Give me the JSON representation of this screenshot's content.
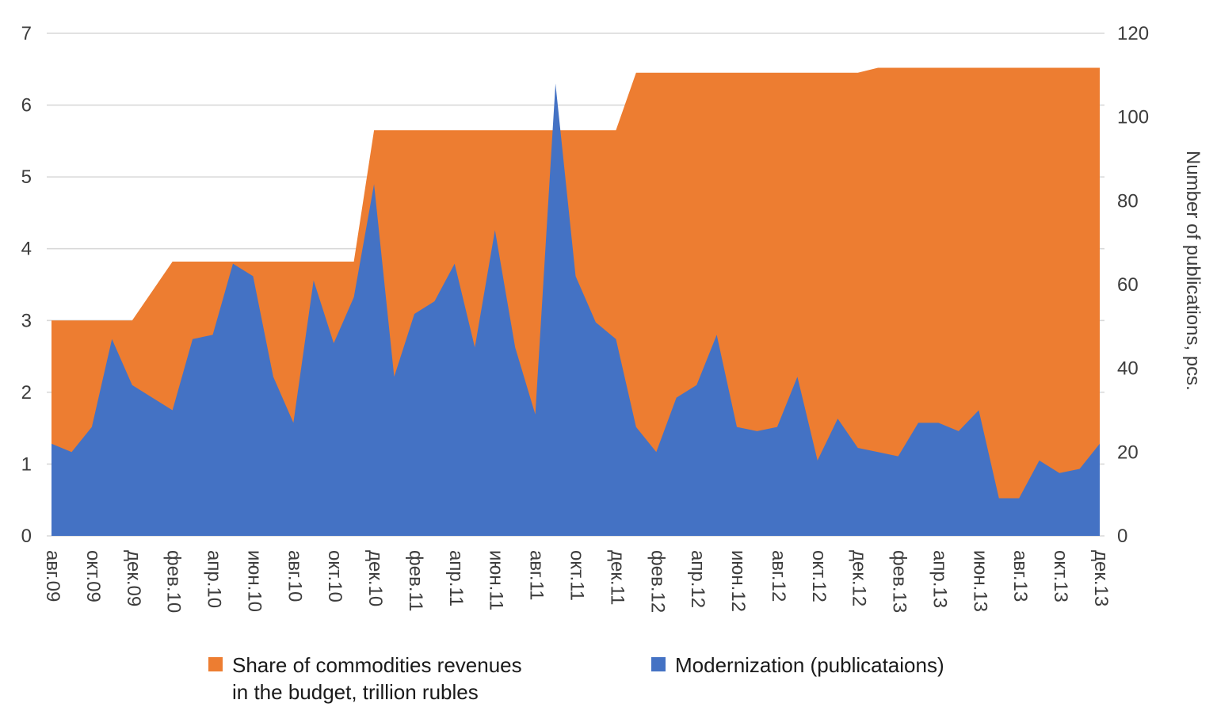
{
  "chart_data": {
    "type": "area",
    "title": "",
    "grid": true,
    "legend_position": "bottom",
    "months": [
      "авг.09",
      "сен.09",
      "окт.09",
      "ноя.09",
      "дек.09",
      "янв.10",
      "фев.10",
      "мар.10",
      "апр.10",
      "май.10",
      "июн.10",
      "июл.10",
      "авг.10",
      "сен.10",
      "окт.10",
      "ноя.10",
      "дек.10",
      "янв.11",
      "фев.11",
      "мар.11",
      "апр.11",
      "май.11",
      "июн.11",
      "июл.11",
      "авг.11",
      "сен.11",
      "окт.11",
      "ноя.11",
      "дек.11",
      "янв.12",
      "фев.12",
      "мар.12",
      "апр.12",
      "май.12",
      "июн.12",
      "июл.12",
      "авг.12",
      "сен.12",
      "окт.12",
      "ноя.12",
      "дек.12",
      "янв.13",
      "фев.13",
      "мар.13",
      "апр.13",
      "май.13",
      "июн.13",
      "июл.13",
      "авг.13",
      "сен.13",
      "окт.13",
      "ноя.13",
      "дек.13"
    ],
    "x_axis": {
      "tick_every": 2,
      "visible_labels": [
        "авг.09",
        "окт.09",
        "дек.09",
        "фев.10",
        "апр.10",
        "июн.10",
        "авг.10",
        "окт.10",
        "дек.10",
        "фев.11",
        "апр.11",
        "июн.11",
        "авг.11",
        "окт.11",
        "дек.11",
        "фев.12",
        "апр.12",
        "июн.12",
        "авг.12",
        "окт.12",
        "дек.12",
        "фев.13",
        "апр.13",
        "июн.13",
        "авг.13",
        "окт.13",
        "дек.13"
      ]
    },
    "left_axis": {
      "min": 0,
      "max": 7,
      "tick_step": 1,
      "tick_labels": [
        "0",
        "1",
        "2",
        "3",
        "4",
        "5",
        "6",
        "7"
      ],
      "title": ""
    },
    "right_axis": {
      "min": 0,
      "max": 120,
      "tick_step": 20,
      "tick_labels": [
        "0",
        "20",
        "40",
        "60",
        "80",
        "100",
        "120"
      ],
      "title": "Number of publications, pcs."
    },
    "series": [
      {
        "id": "commodities",
        "name": "Share of commodities revenues in the budget, trillion rubles",
        "axis": "left",
        "color": "#ED7D31",
        "values": [
          3.0,
          3.0,
          3.0,
          3.0,
          3.0,
          3.41,
          3.82,
          3.82,
          3.82,
          3.82,
          3.82,
          3.82,
          3.82,
          3.82,
          3.82,
          3.82,
          5.65,
          5.65,
          5.65,
          5.65,
          5.65,
          5.65,
          5.65,
          5.65,
          5.65,
          5.65,
          5.65,
          5.65,
          5.65,
          6.45,
          6.45,
          6.45,
          6.45,
          6.45,
          6.45,
          6.45,
          6.45,
          6.45,
          6.45,
          6.45,
          6.45,
          6.52,
          6.52,
          6.52,
          6.52,
          6.52,
          6.52,
          6.52,
          6.52,
          6.52,
          6.52,
          6.52,
          6.52
        ]
      },
      {
        "id": "publications",
        "name": "Modernization (publicataions)",
        "axis": "right",
        "color": "#4472C4",
        "values": [
          22,
          20,
          26,
          47,
          36,
          33,
          30,
          47,
          48,
          65,
          62,
          38,
          27,
          61,
          46,
          57,
          84,
          38,
          53,
          56,
          65,
          45,
          73,
          45,
          29,
          108,
          62,
          51,
          47,
          26,
          20,
          33,
          36,
          48,
          26,
          25,
          26,
          38,
          18,
          28,
          21,
          20,
          19,
          27,
          27,
          25,
          30,
          9,
          9,
          18,
          15,
          16,
          22
        ]
      }
    ],
    "legend": [
      {
        "line1": "Share of commodities revenues",
        "line2": "in the budget, trillion rubles",
        "color": "#ED7D31"
      },
      {
        "line1": "Modernization (publicataions)",
        "line2": "",
        "color": "#4472C4"
      }
    ],
    "colors": {
      "gridline": "#D9D9D9",
      "tick_text": "#3d3d3d",
      "legend_text": "#1a1a1a"
    }
  }
}
